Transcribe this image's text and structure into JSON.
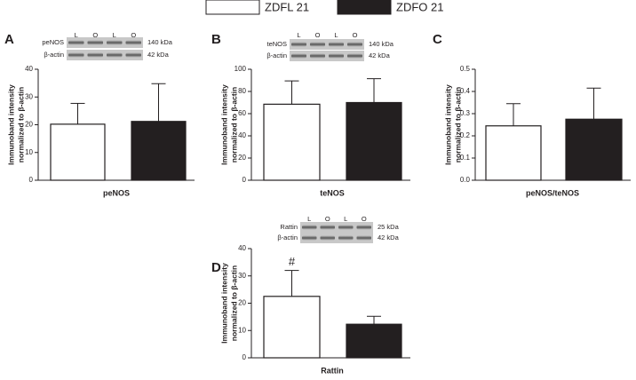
{
  "legend": [
    {
      "name": "ZDFL 21",
      "color": "#ffffff"
    },
    {
      "name": "ZDFO 21",
      "color": "#231f20"
    }
  ],
  "chart_data": [
    {
      "type": "bar",
      "label": "A",
      "xlabel": "peNOS",
      "ylabel": [
        "Immunoband intensity",
        "normalized to β-actin"
      ],
      "values": [
        20.2,
        21.2
      ],
      "errors": [
        7.5,
        13.6
      ],
      "ylim": [
        0,
        40
      ],
      "yticks": [
        0,
        10,
        20,
        30,
        40
      ],
      "blot": {
        "lanes": [
          "L",
          "O",
          "L",
          "O"
        ],
        "rows": [
          {
            "name": "peNOS",
            "size": "140 kDa"
          },
          {
            "name": "β-actin",
            "size": "42 kDa"
          }
        ]
      }
    },
    {
      "type": "bar",
      "label": "B",
      "xlabel": "teNOS",
      "ylabel": [
        "Immunoband intensity",
        "normalized to β-actin"
      ],
      "values": [
        68.5,
        70
      ],
      "errors": [
        21,
        21.5
      ],
      "ylim": [
        0,
        100
      ],
      "yticks": [
        0,
        20,
        40,
        60,
        80,
        100
      ],
      "blot": {
        "lanes": [
          "L",
          "O",
          "L",
          "O"
        ],
        "rows": [
          {
            "name": "teNOS",
            "size": "140 kDa"
          },
          {
            "name": "β-actin",
            "size": "42 kDa"
          }
        ]
      }
    },
    {
      "type": "bar",
      "label": "C",
      "xlabel": "peNOS/teNOS",
      "ylabel": [
        "Immunoband intensity",
        "normalized to β-actin"
      ],
      "values": [
        0.245,
        0.275
      ],
      "errors": [
        0.1,
        0.14
      ],
      "ylim": [
        0,
        0.5
      ],
      "yticks": [
        {
          "value": 0,
          "label": "0.0"
        },
        0.1,
        0.2,
        0.3,
        0.4,
        0.5
      ]
    },
    {
      "type": "bar",
      "label": "D",
      "xlabel": "Rattin",
      "ylabel": [
        "Immunoband intensity",
        "normalized to β-actin"
      ],
      "values": [
        22.5,
        12.3
      ],
      "errors": [
        9.5,
        2.9
      ],
      "ylim": [
        0,
        40
      ],
      "yticks": [
        0,
        10,
        20,
        30,
        40
      ],
      "annotations": [
        "#",
        null
      ],
      "blot": {
        "lanes": [
          "L",
          "O",
          "L",
          "O"
        ],
        "rows": [
          {
            "name": "Rattin",
            "size": "25 kDa"
          },
          {
            "name": "β-actin",
            "size": "42 kDa"
          }
        ]
      }
    }
  ]
}
